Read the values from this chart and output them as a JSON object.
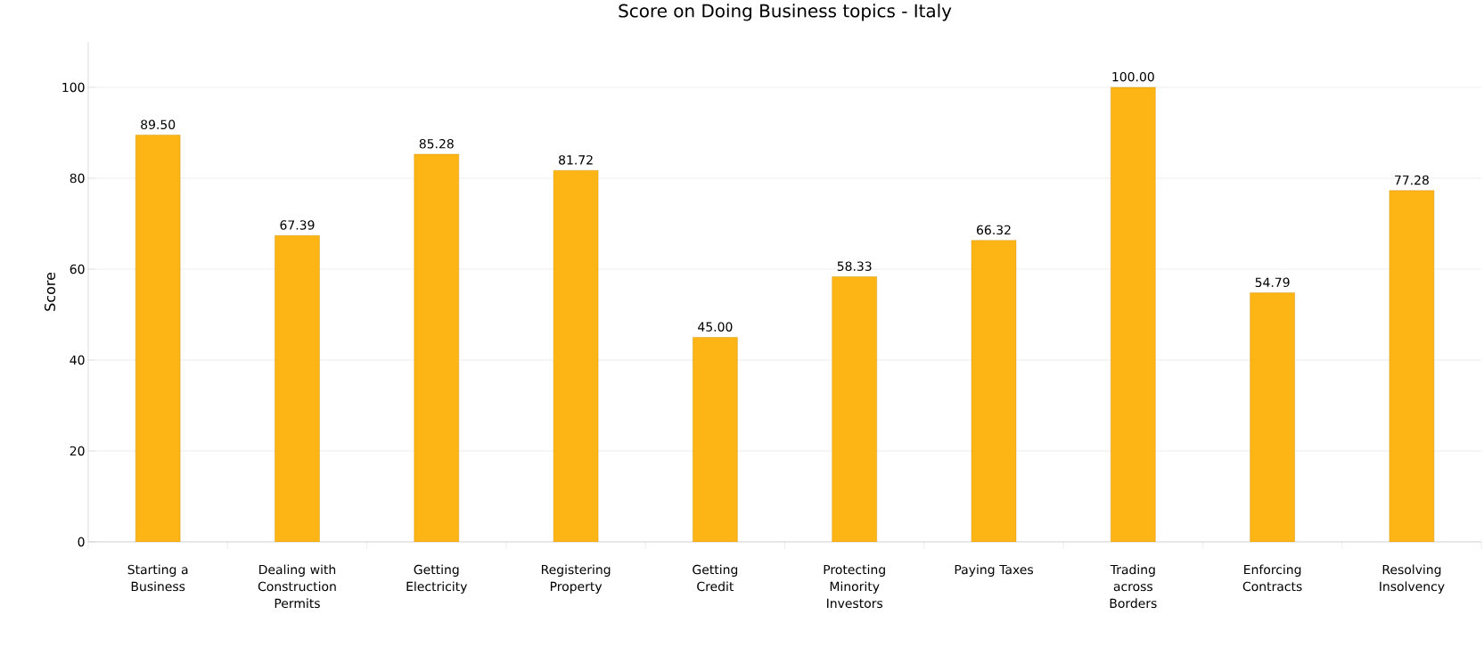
{
  "chart_data": {
    "type": "bar",
    "title": "Score on Doing Business topics - Italy",
    "ylabel": "Score",
    "categories": [
      "Starting a Business",
      "Dealing with Construction Permits",
      "Getting Electricity",
      "Registering Property",
      "Getting Credit",
      "Protecting Minority Investors",
      "Paying Taxes",
      "Trading across Borders",
      "Enforcing Contracts",
      "Resolving Insolvency"
    ],
    "values": [
      89.5,
      67.39,
      85.28,
      81.72,
      45.0,
      58.33,
      66.32,
      100.0,
      54.79,
      77.28
    ],
    "value_labels": [
      "89.50",
      "67.39",
      "85.28",
      "81.72",
      "45.00",
      "58.33",
      "66.32",
      "100.00",
      "54.79",
      "77.28"
    ],
    "color": "#fdb515",
    "ylim": [
      0,
      110
    ],
    "yticks": [
      0,
      20,
      40,
      60,
      80,
      100
    ],
    "grid": "y"
  }
}
